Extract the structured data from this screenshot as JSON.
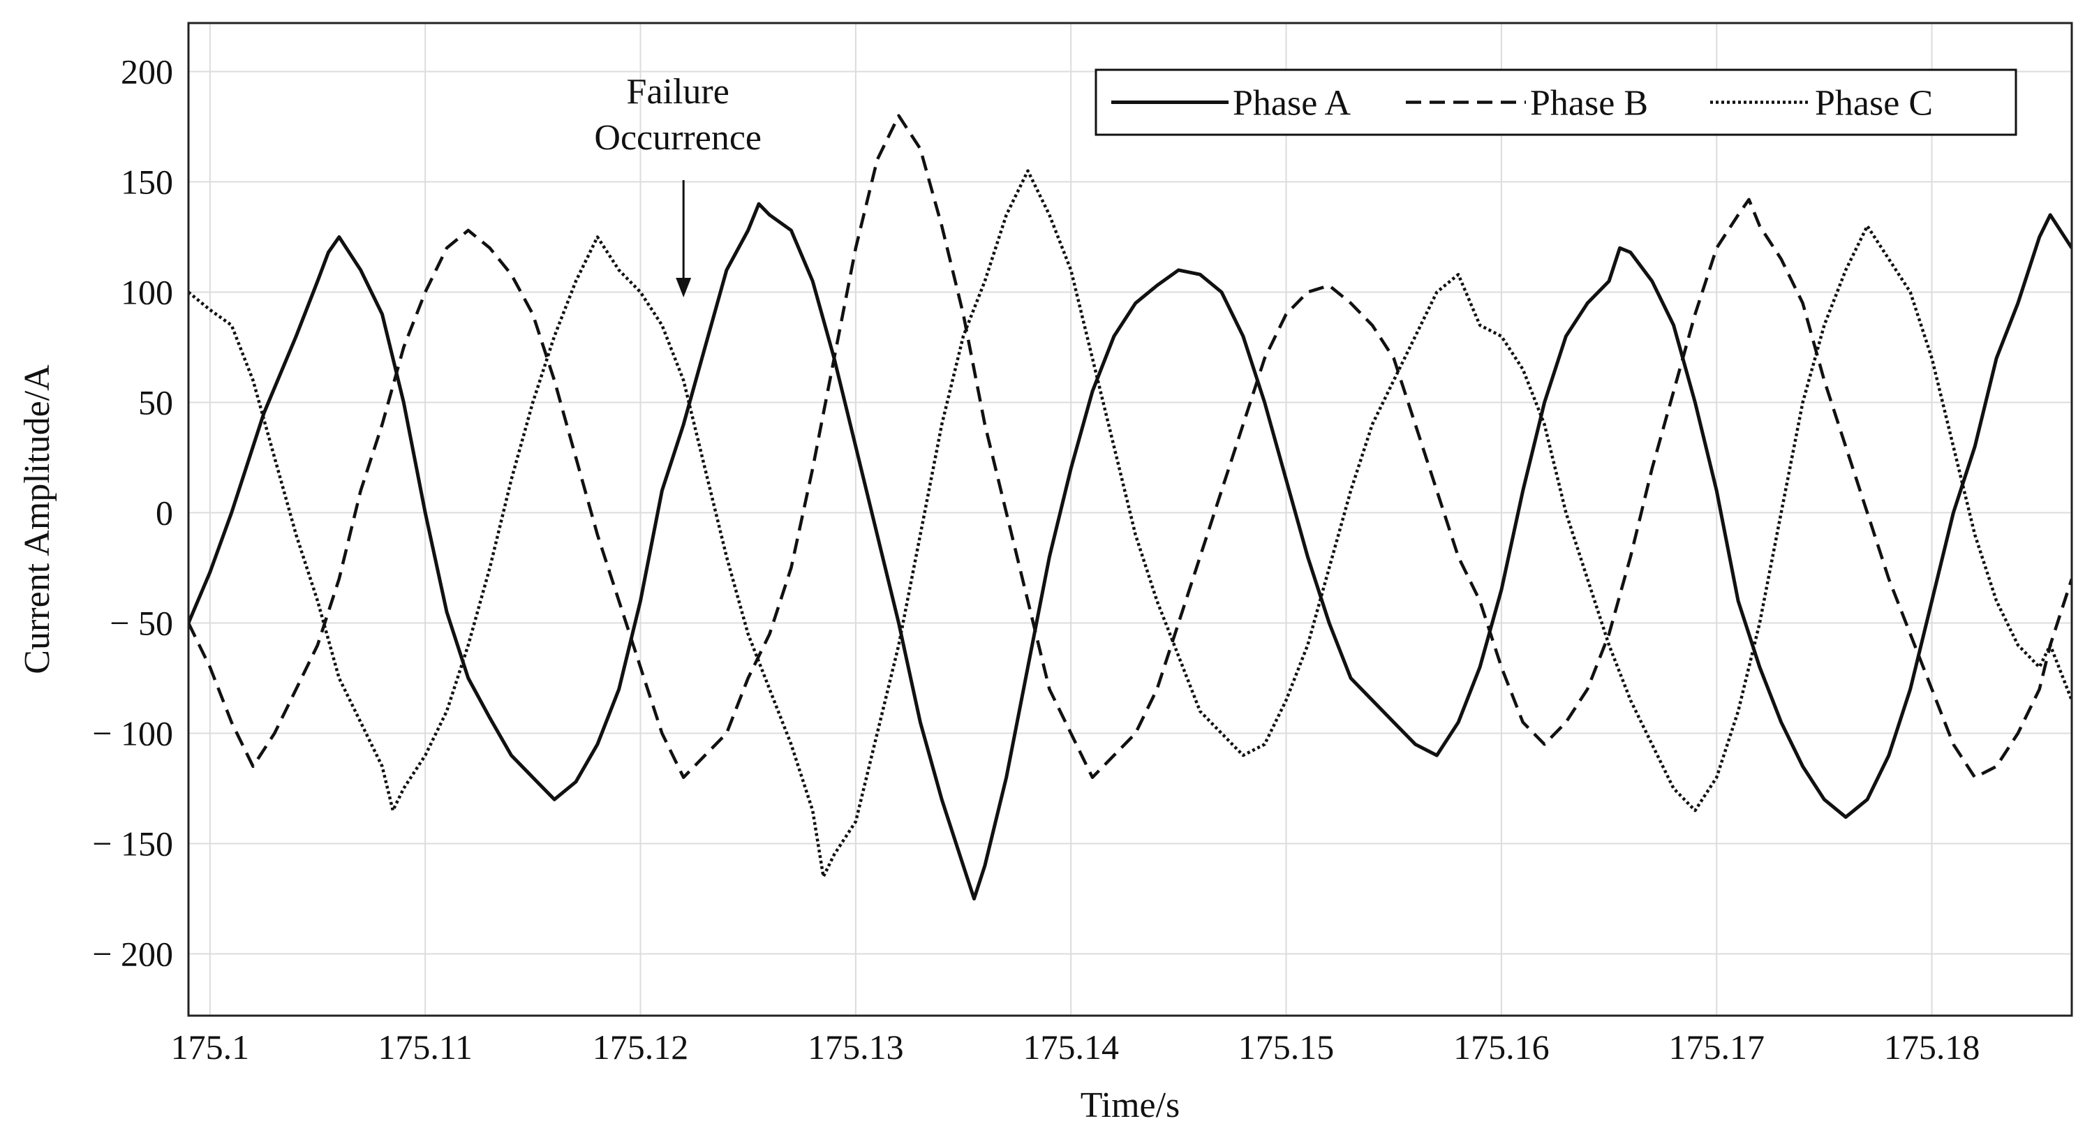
{
  "chart_data": {
    "type": "line",
    "xlabel": "Time/s",
    "ylabel": "Current Amplitude/A",
    "xlim": [
      175.099,
      175.1865
    ],
    "ylim": [
      -228,
      222
    ],
    "x_ticks": [
      175.1,
      175.11,
      175.12,
      175.13,
      175.14,
      175.15,
      175.16,
      175.17,
      175.18
    ],
    "x_tick_labels": [
      "175.1",
      "175.11",
      "175.12",
      "175.13",
      "175.14",
      "175.15",
      "175.16",
      "175.17",
      "175.18"
    ],
    "y_ticks": [
      200,
      150,
      100,
      50,
      0,
      -50,
      -100,
      -150,
      -200
    ],
    "y_tick_labels": [
      "200",
      "150",
      "100",
      "50",
      "0",
      "− 50",
      "− 100",
      "− 150",
      "− 200"
    ],
    "grid": true,
    "legend_position": "top-right",
    "annotation": {
      "text_line1": "Failure",
      "text_line2": "Occurrence",
      "x": 175.122,
      "y": 97
    },
    "series": [
      {
        "name": "Phase A",
        "style": "solid",
        "color": "#111111",
        "points": [
          [
            175.099,
            -50
          ],
          [
            175.1,
            -27
          ],
          [
            175.101,
            0
          ],
          [
            175.1025,
            45
          ],
          [
            175.104,
            80
          ],
          [
            175.105,
            105
          ],
          [
            175.1055,
            118
          ],
          [
            175.106,
            125
          ],
          [
            175.107,
            110
          ],
          [
            175.108,
            90
          ],
          [
            175.109,
            50
          ],
          [
            175.11,
            0
          ],
          [
            175.111,
            -45
          ],
          [
            175.112,
            -75
          ],
          [
            175.113,
            -93
          ],
          [
            175.114,
            -110
          ],
          [
            175.115,
            -120
          ],
          [
            175.116,
            -130
          ],
          [
            175.117,
            -122
          ],
          [
            175.118,
            -105
          ],
          [
            175.119,
            -80
          ],
          [
            175.12,
            -40
          ],
          [
            175.121,
            10
          ],
          [
            175.122,
            40
          ],
          [
            175.123,
            75
          ],
          [
            175.124,
            110
          ],
          [
            175.125,
            128
          ],
          [
            175.1255,
            140
          ],
          [
            175.126,
            135
          ],
          [
            175.127,
            128
          ],
          [
            175.128,
            105
          ],
          [
            175.129,
            70
          ],
          [
            175.13,
            30
          ],
          [
            175.131,
            -10
          ],
          [
            175.132,
            -50
          ],
          [
            175.133,
            -95
          ],
          [
            175.134,
            -130
          ],
          [
            175.135,
            -160
          ],
          [
            175.1355,
            -175
          ],
          [
            175.136,
            -160
          ],
          [
            175.137,
            -120
          ],
          [
            175.138,
            -70
          ],
          [
            175.139,
            -20
          ],
          [
            175.14,
            20
          ],
          [
            175.141,
            55
          ],
          [
            175.142,
            80
          ],
          [
            175.143,
            95
          ],
          [
            175.144,
            103
          ],
          [
            175.145,
            110
          ],
          [
            175.146,
            108
          ],
          [
            175.147,
            100
          ],
          [
            175.148,
            80
          ],
          [
            175.149,
            50
          ],
          [
            175.15,
            15
          ],
          [
            175.151,
            -20
          ],
          [
            175.152,
            -50
          ],
          [
            175.153,
            -75
          ],
          [
            175.154,
            -85
          ],
          [
            175.155,
            -95
          ],
          [
            175.156,
            -105
          ],
          [
            175.157,
            -110
          ],
          [
            175.158,
            -95
          ],
          [
            175.159,
            -70
          ],
          [
            175.16,
            -35
          ],
          [
            175.161,
            10
          ],
          [
            175.162,
            50
          ],
          [
            175.163,
            80
          ],
          [
            175.164,
            95
          ],
          [
            175.165,
            105
          ],
          [
            175.1655,
            120
          ],
          [
            175.166,
            118
          ],
          [
            175.167,
            105
          ],
          [
            175.168,
            85
          ],
          [
            175.169,
            50
          ],
          [
            175.17,
            10
          ],
          [
            175.171,
            -40
          ],
          [
            175.172,
            -70
          ],
          [
            175.173,
            -95
          ],
          [
            175.174,
            -115
          ],
          [
            175.175,
            -130
          ],
          [
            175.176,
            -138
          ],
          [
            175.177,
            -130
          ],
          [
            175.178,
            -110
          ],
          [
            175.179,
            -80
          ],
          [
            175.18,
            -40
          ],
          [
            175.181,
            0
          ],
          [
            175.182,
            30
          ],
          [
            175.183,
            70
          ],
          [
            175.184,
            95
          ],
          [
            175.185,
            125
          ],
          [
            175.1855,
            135
          ],
          [
            175.1865,
            120
          ]
        ]
      },
      {
        "name": "Phase B",
        "style": "dashed",
        "color": "#111111",
        "points": [
          [
            175.099,
            -50
          ],
          [
            175.1,
            -70
          ],
          [
            175.101,
            -95
          ],
          [
            175.102,
            -115
          ],
          [
            175.103,
            -100
          ],
          [
            175.104,
            -80
          ],
          [
            175.105,
            -60
          ],
          [
            175.106,
            -30
          ],
          [
            175.107,
            10
          ],
          [
            175.108,
            40
          ],
          [
            175.109,
            75
          ],
          [
            175.11,
            100
          ],
          [
            175.111,
            120
          ],
          [
            175.112,
            128
          ],
          [
            175.113,
            120
          ],
          [
            175.114,
            108
          ],
          [
            175.115,
            90
          ],
          [
            175.116,
            60
          ],
          [
            175.117,
            25
          ],
          [
            175.118,
            -10
          ],
          [
            175.119,
            -40
          ],
          [
            175.12,
            -70
          ],
          [
            175.121,
            -100
          ],
          [
            175.122,
            -120
          ],
          [
            175.123,
            -110
          ],
          [
            175.124,
            -100
          ],
          [
            175.125,
            -75
          ],
          [
            175.126,
            -55
          ],
          [
            175.127,
            -25
          ],
          [
            175.128,
            20
          ],
          [
            175.129,
            70
          ],
          [
            175.13,
            120
          ],
          [
            175.131,
            160
          ],
          [
            175.132,
            180
          ],
          [
            175.133,
            165
          ],
          [
            175.134,
            130
          ],
          [
            175.135,
            90
          ],
          [
            175.136,
            40
          ],
          [
            175.137,
            0
          ],
          [
            175.138,
            -40
          ],
          [
            175.139,
            -80
          ],
          [
            175.14,
            -100
          ],
          [
            175.141,
            -120
          ],
          [
            175.142,
            -110
          ],
          [
            175.143,
            -100
          ],
          [
            175.144,
            -80
          ],
          [
            175.145,
            -50
          ],
          [
            175.146,
            -20
          ],
          [
            175.147,
            10
          ],
          [
            175.148,
            40
          ],
          [
            175.149,
            70
          ],
          [
            175.15,
            90
          ],
          [
            175.151,
            100
          ],
          [
            175.152,
            103
          ],
          [
            175.153,
            95
          ],
          [
            175.154,
            85
          ],
          [
            175.155,
            70
          ],
          [
            175.156,
            40
          ],
          [
            175.157,
            10
          ],
          [
            175.158,
            -20
          ],
          [
            175.159,
            -40
          ],
          [
            175.16,
            -70
          ],
          [
            175.161,
            -95
          ],
          [
            175.162,
            -105
          ],
          [
            175.163,
            -95
          ],
          [
            175.164,
            -80
          ],
          [
            175.165,
            -55
          ],
          [
            175.166,
            -20
          ],
          [
            175.167,
            20
          ],
          [
            175.168,
            55
          ],
          [
            175.169,
            90
          ],
          [
            175.17,
            120
          ],
          [
            175.171,
            135
          ],
          [
            175.1715,
            142
          ],
          [
            175.172,
            130
          ],
          [
            175.173,
            115
          ],
          [
            175.174,
            95
          ],
          [
            175.175,
            60
          ],
          [
            175.176,
            30
          ],
          [
            175.177,
            0
          ],
          [
            175.178,
            -30
          ],
          [
            175.179,
            -55
          ],
          [
            175.18,
            -80
          ],
          [
            175.181,
            -105
          ],
          [
            175.182,
            -120
          ],
          [
            175.183,
            -115
          ],
          [
            175.184,
            -100
          ],
          [
            175.185,
            -80
          ],
          [
            175.1855,
            -60
          ],
          [
            175.1865,
            -30
          ]
        ]
      },
      {
        "name": "Phase C",
        "style": "dotted",
        "color": "#111111",
        "points": [
          [
            175.099,
            100
          ],
          [
            175.1,
            92
          ],
          [
            175.101,
            85
          ],
          [
            175.102,
            60
          ],
          [
            175.103,
            25
          ],
          [
            175.104,
            -10
          ],
          [
            175.105,
            -40
          ],
          [
            175.106,
            -75
          ],
          [
            175.107,
            -95
          ],
          [
            175.108,
            -115
          ],
          [
            175.1085,
            -135
          ],
          [
            175.109,
            -125
          ],
          [
            175.11,
            -110
          ],
          [
            175.111,
            -90
          ],
          [
            175.112,
            -60
          ],
          [
            175.113,
            -25
          ],
          [
            175.114,
            15
          ],
          [
            175.115,
            50
          ],
          [
            175.116,
            80
          ],
          [
            175.117,
            105
          ],
          [
            175.118,
            125
          ],
          [
            175.119,
            110
          ],
          [
            175.12,
            100
          ],
          [
            175.121,
            85
          ],
          [
            175.122,
            60
          ],
          [
            175.123,
            20
          ],
          [
            175.124,
            -20
          ],
          [
            175.125,
            -55
          ],
          [
            175.126,
            -80
          ],
          [
            175.127,
            -105
          ],
          [
            175.128,
            -135
          ],
          [
            175.1285,
            -165
          ],
          [
            175.129,
            -155
          ],
          [
            175.13,
            -140
          ],
          [
            175.131,
            -100
          ],
          [
            175.132,
            -60
          ],
          [
            175.133,
            -10
          ],
          [
            175.134,
            40
          ],
          [
            175.135,
            80
          ],
          [
            175.136,
            105
          ],
          [
            175.137,
            135
          ],
          [
            175.138,
            155
          ],
          [
            175.139,
            135
          ],
          [
            175.14,
            110
          ],
          [
            175.141,
            70
          ],
          [
            175.142,
            30
          ],
          [
            175.143,
            -10
          ],
          [
            175.144,
            -40
          ],
          [
            175.145,
            -65
          ],
          [
            175.146,
            -90
          ],
          [
            175.147,
            -100
          ],
          [
            175.148,
            -110
          ],
          [
            175.149,
            -105
          ],
          [
            175.15,
            -85
          ],
          [
            175.151,
            -60
          ],
          [
            175.152,
            -25
          ],
          [
            175.153,
            10
          ],
          [
            175.154,
            40
          ],
          [
            175.155,
            60
          ],
          [
            175.156,
            80
          ],
          [
            175.157,
            100
          ],
          [
            175.158,
            108
          ],
          [
            175.159,
            85
          ],
          [
            175.16,
            80
          ],
          [
            175.161,
            65
          ],
          [
            175.162,
            40
          ],
          [
            175.163,
            0
          ],
          [
            175.164,
            -30
          ],
          [
            175.165,
            -60
          ],
          [
            175.166,
            -85
          ],
          [
            175.167,
            -105
          ],
          [
            175.168,
            -125
          ],
          [
            175.169,
            -135
          ],
          [
            175.17,
            -120
          ],
          [
            175.171,
            -90
          ],
          [
            175.172,
            -50
          ],
          [
            175.173,
            0
          ],
          [
            175.174,
            50
          ],
          [
            175.175,
            85
          ],
          [
            175.176,
            110
          ],
          [
            175.177,
            130
          ],
          [
            175.178,
            115
          ],
          [
            175.179,
            100
          ],
          [
            175.18,
            70
          ],
          [
            175.181,
            30
          ],
          [
            175.182,
            -10
          ],
          [
            175.183,
            -40
          ],
          [
            175.184,
            -60
          ],
          [
            175.185,
            -70
          ],
          [
            175.1855,
            -60
          ],
          [
            175.1865,
            -85
          ]
        ]
      }
    ]
  }
}
